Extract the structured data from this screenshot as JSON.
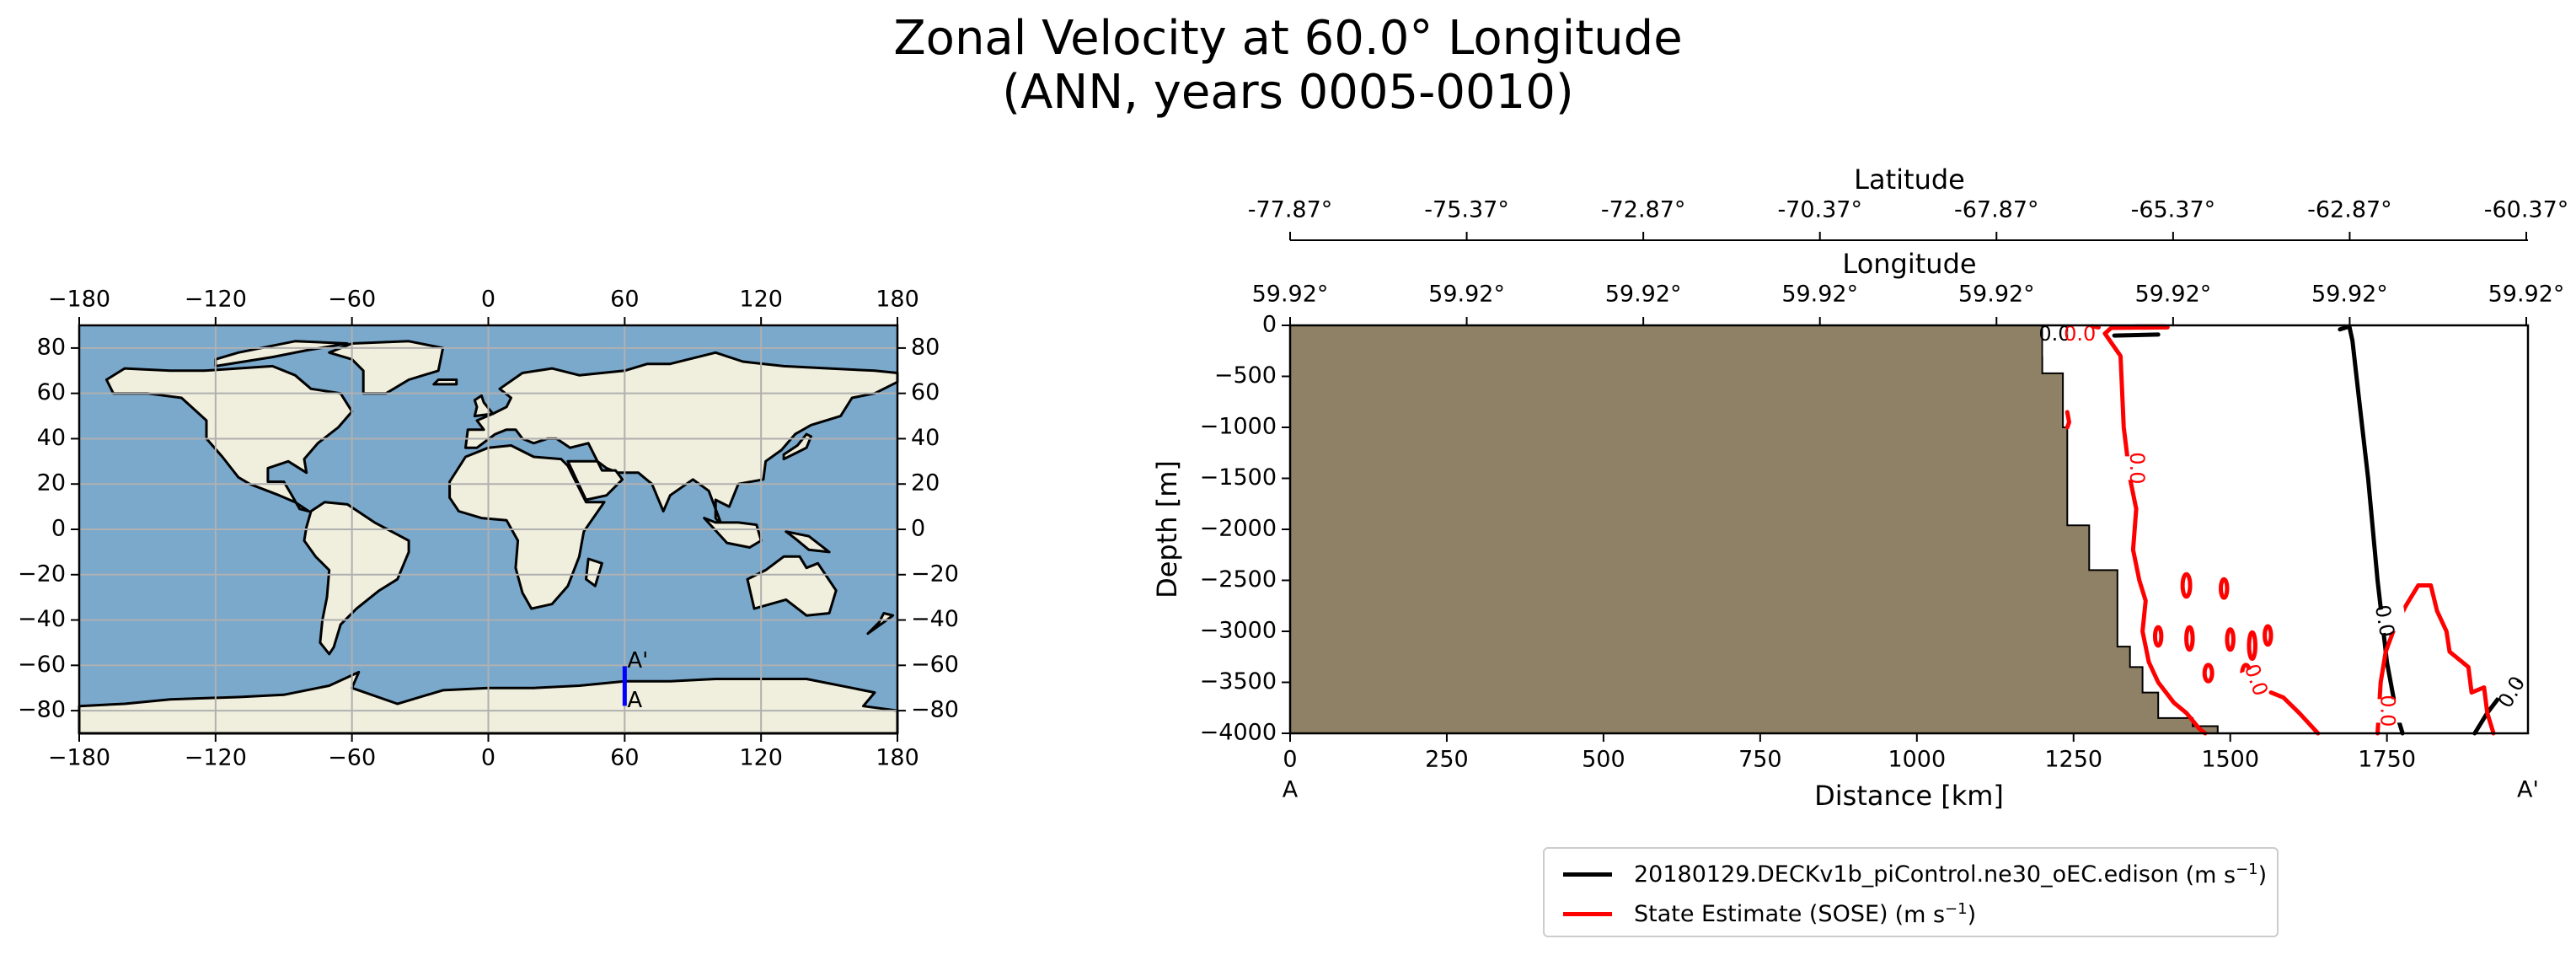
{
  "title": {
    "line1": "Zonal Velocity at 60.0° Longitude",
    "line2": "(ANN, years 0005-0010)"
  },
  "chart_data": [
    {
      "type": "map",
      "title": "",
      "x_ticks": [
        -180,
        -120,
        -60,
        0,
        60,
        120,
        180
      ],
      "y_ticks": [
        80,
        60,
        40,
        20,
        0,
        -20,
        -40,
        -60,
        -80
      ],
      "xlim": [
        -180,
        180
      ],
      "ylim": [
        -90,
        90
      ],
      "grid": true,
      "transect": {
        "lon": 60,
        "lat_start": -77.87,
        "lat_end": -60.37,
        "start_label": "A",
        "end_label": "A'",
        "color": "#0000ff"
      },
      "ocean_color": "#7aa9cc",
      "land_color": "#f0eedc"
    },
    {
      "type": "contour",
      "xlabel": "Distance [km]",
      "ylabel": "Depth [m]",
      "xlim": [
        0,
        1975
      ],
      "ylim": [
        -4000,
        0
      ],
      "x_ticks": [
        0,
        250,
        500,
        750,
        1000,
        1250,
        1500,
        1750
      ],
      "y_ticks": [
        0,
        -500,
        -1000,
        -1500,
        -2000,
        -2500,
        -3000,
        -3500,
        -4000
      ],
      "endpoints": {
        "start": "A",
        "end": "A'"
      },
      "top_axis_latitude": {
        "label": "Latitude",
        "ticks": [
          "-77.87°",
          "-75.37°",
          "-72.87°",
          "-70.37°",
          "-67.87°",
          "-65.37°",
          "-62.87°",
          "-60.37°"
        ]
      },
      "top_axis_longitude": {
        "label": "Longitude",
        "ticks": [
          "59.92°",
          "59.92°",
          "59.92°",
          "59.92°",
          "59.92°",
          "59.92°",
          "59.92°",
          "59.92°"
        ]
      },
      "bathymetry_color": "#8f8166",
      "bathymetry": [
        [
          0,
          0
        ],
        [
          1200,
          0
        ],
        [
          1200,
          -470
        ],
        [
          1233,
          -470
        ],
        [
          1233,
          -1000
        ],
        [
          1240,
          -1000
        ],
        [
          1240,
          -1960
        ],
        [
          1275,
          -1960
        ],
        [
          1275,
          -2400
        ],
        [
          1320,
          -2400
        ],
        [
          1320,
          -3150
        ],
        [
          1340,
          -3150
        ],
        [
          1340,
          -3350
        ],
        [
          1360,
          -3350
        ],
        [
          1360,
          -3600
        ],
        [
          1385,
          -3600
        ],
        [
          1385,
          -3850
        ],
        [
          1440,
          -3850
        ],
        [
          1440,
          -3930
        ],
        [
          1480,
          -3930
        ],
        [
          1480,
          -4000
        ],
        [
          0,
          -4000
        ]
      ],
      "contour_level_label": "0.0",
      "series": [
        {
          "name": "20180129.DECKv1b_piControl.ne30_oEC.edison",
          "color": "#000000",
          "contours": [
            [
              [
                1675,
                -40
              ],
              [
                1690,
                -10
              ],
              [
                1695,
                -150
              ],
              [
                1705,
                -700
              ],
              [
                1720,
                -1500
              ],
              [
                1735,
                -2500
              ],
              [
                1750,
                -3300
              ],
              [
                1765,
                -3800
              ],
              [
                1775,
                -4000
              ]
            ],
            [
              [
                1890,
                -4000
              ],
              [
                1910,
                -3800
              ],
              [
                1935,
                -3600
              ],
              [
                1960,
                -3500
              ]
            ],
            [
              [
                1315,
                -100
              ],
              [
                1385,
                -90
              ]
            ]
          ]
        },
        {
          "name": "State Estimate (SOSE)",
          "color": "#ff0000",
          "contours": [
            [
              [
                1400,
                -20
              ],
              [
                1310,
                -25
              ],
              [
                1300,
                -80
              ],
              [
                1325,
                -300
              ],
              [
                1330,
                -1000
              ],
              [
                1340,
                -1500
              ],
              [
                1350,
                -1800
              ],
              [
                1345,
                -2200
              ],
              [
                1355,
                -2500
              ],
              [
                1365,
                -2700
              ],
              [
                1360,
                -3000
              ],
              [
                1370,
                -3300
              ],
              [
                1385,
                -3500
              ],
              [
                1410,
                -3700
              ],
              [
                1430,
                -3800
              ],
              [
                1450,
                -3950
              ],
              [
                1460,
                -4000
              ]
            ],
            [
              [
                1340,
                -20
              ],
              [
                1350,
                -10
              ],
              [
                1395,
                -10
              ]
            ],
            [
              [
                1565,
                -3600
              ],
              [
                1585,
                -3650
              ],
              [
                1610,
                -3800
              ],
              [
                1625,
                -3900
              ],
              [
                1640,
                -4000
              ]
            ],
            [
              [
                1735,
                -4000
              ],
              [
                1740,
                -3500
              ],
              [
                1748,
                -3200
              ],
              [
                1760,
                -3000
              ],
              [
                1780,
                -2750
              ],
              [
                1800,
                -2550
              ],
              [
                1820,
                -2550
              ],
              [
                1830,
                -2800
              ],
              [
                1845,
                -3000
              ],
              [
                1850,
                -3200
              ],
              [
                1880,
                -3350
              ],
              [
                1885,
                -3600
              ],
              [
                1905,
                -3550
              ],
              [
                1910,
                -3800
              ],
              [
                1920,
                -4000
              ]
            ],
            [
              [
                1260,
                -40
              ],
              [
                1275,
                -5
              ],
              [
                1290,
                -20
              ]
            ],
            [
              [
                1240,
                -850
              ],
              [
                1243,
                -950
              ],
              [
                1240,
                -1000
              ]
            ]
          ],
          "closed_contours": [
            {
              "x": 1430,
              "y": -2550,
              "rx": 6,
              "ry": 110
            },
            {
              "x": 1490,
              "y": -2580,
              "rx": 5,
              "ry": 90
            },
            {
              "x": 1385,
              "y": -3050,
              "rx": 5,
              "ry": 90
            },
            {
              "x": 1435,
              "y": -3070,
              "rx": 5,
              "ry": 110
            },
            {
              "x": 1500,
              "y": -3080,
              "rx": 5,
              "ry": 100
            },
            {
              "x": 1535,
              "y": -3140,
              "rx": 5,
              "ry": 130
            },
            {
              "x": 1560,
              "y": -3040,
              "rx": 5,
              "ry": 90
            },
            {
              "x": 1465,
              "y": -3410,
              "rx": 6,
              "ry": 80
            },
            {
              "x": 1525,
              "y": -3410,
              "rx": 6,
              "ry": 80
            }
          ]
        }
      ],
      "legend": [
        {
          "label": "20180129.DECKv1b_piControl.ne30_oEC.edison",
          "unit_base": "(m s",
          "unit_exp": "−1",
          "unit_close": ")",
          "color": "#000000"
        },
        {
          "label": "State Estimate (SOSE)",
          "unit_base": "(m s",
          "unit_exp": "−1",
          "unit_close": ")",
          "color": "#ff0000"
        }
      ]
    }
  ]
}
